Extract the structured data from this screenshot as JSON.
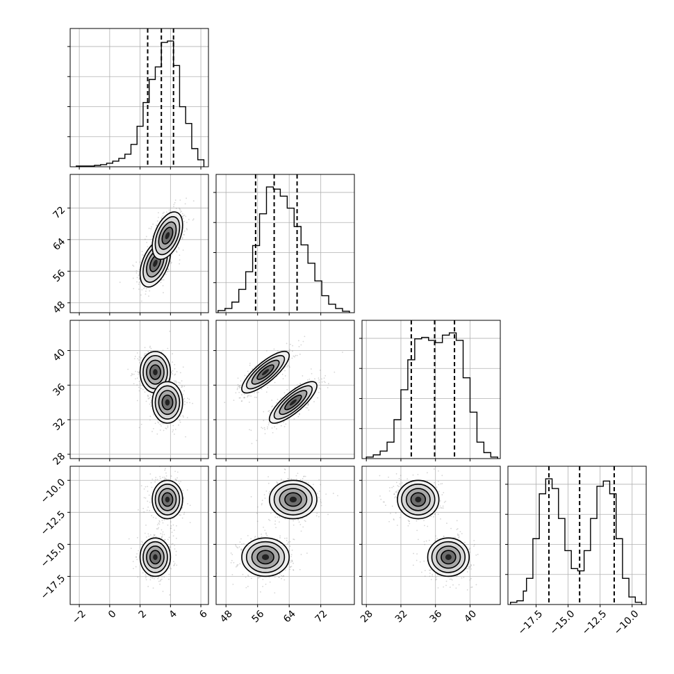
{
  "chart_data": {
    "type": "corner",
    "grid": true,
    "parameters": [
      {
        "range": [
          -2.6,
          6.5
        ],
        "ticks": [
          "−2",
          "0",
          "2",
          "4",
          "6"
        ],
        "tick_values": [
          -2,
          0,
          2,
          4,
          6
        ],
        "quantiles": [
          2.5,
          3.4,
          4.2
        ],
        "hist": {
          "edges": [
            -2.2,
            -1.8,
            -1.4,
            -1.0,
            -0.6,
            -0.2,
            0.2,
            0.6,
            1.0,
            1.4,
            1.8,
            2.2,
            2.6,
            3.0,
            3.4,
            3.8,
            4.2,
            4.6,
            5.0,
            5.4,
            5.8,
            6.2
          ],
          "counts": [
            1,
            1,
            1,
            2,
            3,
            5,
            8,
            12,
            18,
            32,
            58,
            92,
            125,
            143,
            178,
            180,
            145,
            86,
            62,
            26,
            10
          ]
        }
      },
      {
        "range": [
          45.5,
          80.5
        ],
        "ticks": [
          "48",
          "56",
          "64",
          "72"
        ],
        "tick_values": [
          48,
          56,
          64,
          72
        ],
        "quantiles": [
          55.5,
          60.2,
          66.0
        ],
        "hist": {
          "edges": [
            46,
            47.75,
            49.5,
            51.25,
            53,
            54.75,
            56.5,
            58.25,
            60,
            61.75,
            63.5,
            65.25,
            67,
            68.75,
            70.5,
            72.25,
            74,
            75.75,
            77.5,
            79.25
          ],
          "counts": [
            3,
            6,
            15,
            33,
            58,
            95,
            140,
            178,
            175,
            165,
            148,
            122,
            96,
            70,
            45,
            24,
            12,
            6,
            2
          ]
        }
      },
      {
        "range": [
          27.5,
          43.5
        ],
        "ticks": [
          "28",
          "32",
          "36",
          "40"
        ],
        "tick_values": [
          28,
          32,
          36,
          40
        ],
        "quantiles": [
          33.2,
          35.9,
          38.2
        ],
        "hist": {
          "edges": [
            28,
            28.8,
            29.6,
            30.4,
            31.2,
            32,
            32.8,
            33.6,
            34.4,
            35.2,
            36,
            36.8,
            37.6,
            38.4,
            39.2,
            40,
            40.8,
            41.6,
            42.4,
            43.2
          ],
          "counts": [
            2,
            5,
            10,
            22,
            52,
            92,
            132,
            160,
            162,
            158,
            155,
            165,
            168,
            158,
            108,
            62,
            22,
            8,
            2
          ]
        }
      },
      {
        "range": [
          -19.7,
          -8.9
        ],
        "ticks": [
          "−17.5",
          "−15.0",
          "−12.5",
          "−10.0"
        ],
        "tick_values": [
          -17.5,
          -15.0,
          -12.5,
          -10.0
        ],
        "quantiles": [
          -16.5,
          -14.1,
          -11.4
        ],
        "hist": {
          "edges": [
            -19.5,
            -19.0,
            -18.5,
            -18.25,
            -17.75,
            -17.25,
            -16.75,
            -16.25,
            -15.75,
            -15.25,
            -14.75,
            -14.25,
            -13.75,
            -13.25,
            -12.75,
            -12.25,
            -11.75,
            -11.25,
            -10.75,
            -10.25,
            -9.75,
            -9.25
          ],
          "counts": [
            3,
            5,
            18,
            35,
            88,
            148,
            168,
            155,
            115,
            72,
            48,
            45,
            72,
            115,
            158,
            165,
            148,
            88,
            35,
            10,
            3
          ]
        }
      }
    ],
    "clusters": [
      {
        "mean": [
          3.0,
          58.0,
          37.5,
          -16.0
        ],
        "sd": [
          0.5,
          3.0,
          1.2,
          0.75
        ]
      },
      {
        "mean": [
          3.8,
          65.0,
          34.0,
          -11.5
        ],
        "sd": [
          0.5,
          3.0,
          1.2,
          0.75
        ]
      }
    ],
    "correlations": {
      "1-0": 0.45,
      "2-0": 0.0,
      "2-1": 0.8,
      "3-0": 0.0,
      "3-1": 0.0,
      "3-2": 0.0
    }
  }
}
